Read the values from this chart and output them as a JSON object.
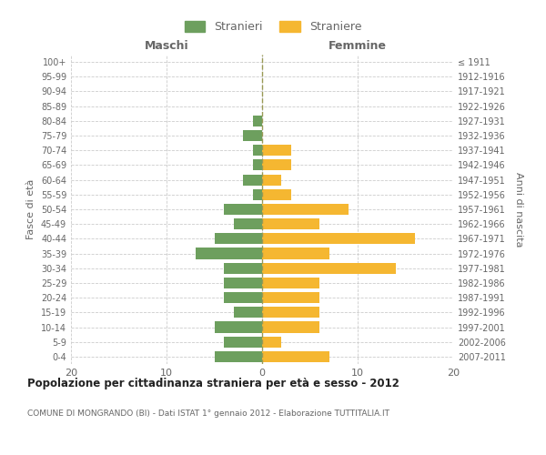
{
  "age_groups": [
    "0-4",
    "5-9",
    "10-14",
    "15-19",
    "20-24",
    "25-29",
    "30-34",
    "35-39",
    "40-44",
    "45-49",
    "50-54",
    "55-59",
    "60-64",
    "65-69",
    "70-74",
    "75-79",
    "80-84",
    "85-89",
    "90-94",
    "95-99",
    "100+"
  ],
  "birth_years": [
    "2007-2011",
    "2002-2006",
    "1997-2001",
    "1992-1996",
    "1987-1991",
    "1982-1986",
    "1977-1981",
    "1972-1976",
    "1967-1971",
    "1962-1966",
    "1957-1961",
    "1952-1956",
    "1947-1951",
    "1942-1946",
    "1937-1941",
    "1932-1936",
    "1927-1931",
    "1922-1926",
    "1917-1921",
    "1912-1916",
    "≤ 1911"
  ],
  "males": [
    5,
    4,
    5,
    3,
    4,
    4,
    4,
    7,
    5,
    3,
    4,
    1,
    2,
    1,
    1,
    2,
    1,
    0,
    0,
    0,
    0
  ],
  "females": [
    7,
    2,
    6,
    6,
    6,
    6,
    14,
    7,
    16,
    6,
    9,
    3,
    2,
    3,
    3,
    0,
    0,
    0,
    0,
    0,
    0
  ],
  "male_color": "#6d9f5e",
  "female_color": "#f5b731",
  "bar_height": 0.75,
  "xlim": [
    -20,
    20
  ],
  "xticks": [
    -20,
    -10,
    0,
    10,
    20
  ],
  "xticklabels": [
    "20",
    "10",
    "0",
    "10",
    "20"
  ],
  "title": "Popolazione per cittadinanza straniera per età e sesso - 2012",
  "subtitle": "COMUNE DI MONGRANDO (BI) - Dati ISTAT 1° gennaio 2012 - Elaborazione TUTTITALIA.IT",
  "ylabel_left": "Fasce di età",
  "ylabel_right": "Anni di nascita",
  "label_maschi": "Maschi",
  "label_femmine": "Femmine",
  "legend_stranieri": "Stranieri",
  "legend_straniere": "Straniere",
  "bg_color": "#ffffff",
  "grid_color": "#cccccc",
  "text_color": "#666666",
  "dashed_line_color": "#999955",
  "title_color": "#222222"
}
